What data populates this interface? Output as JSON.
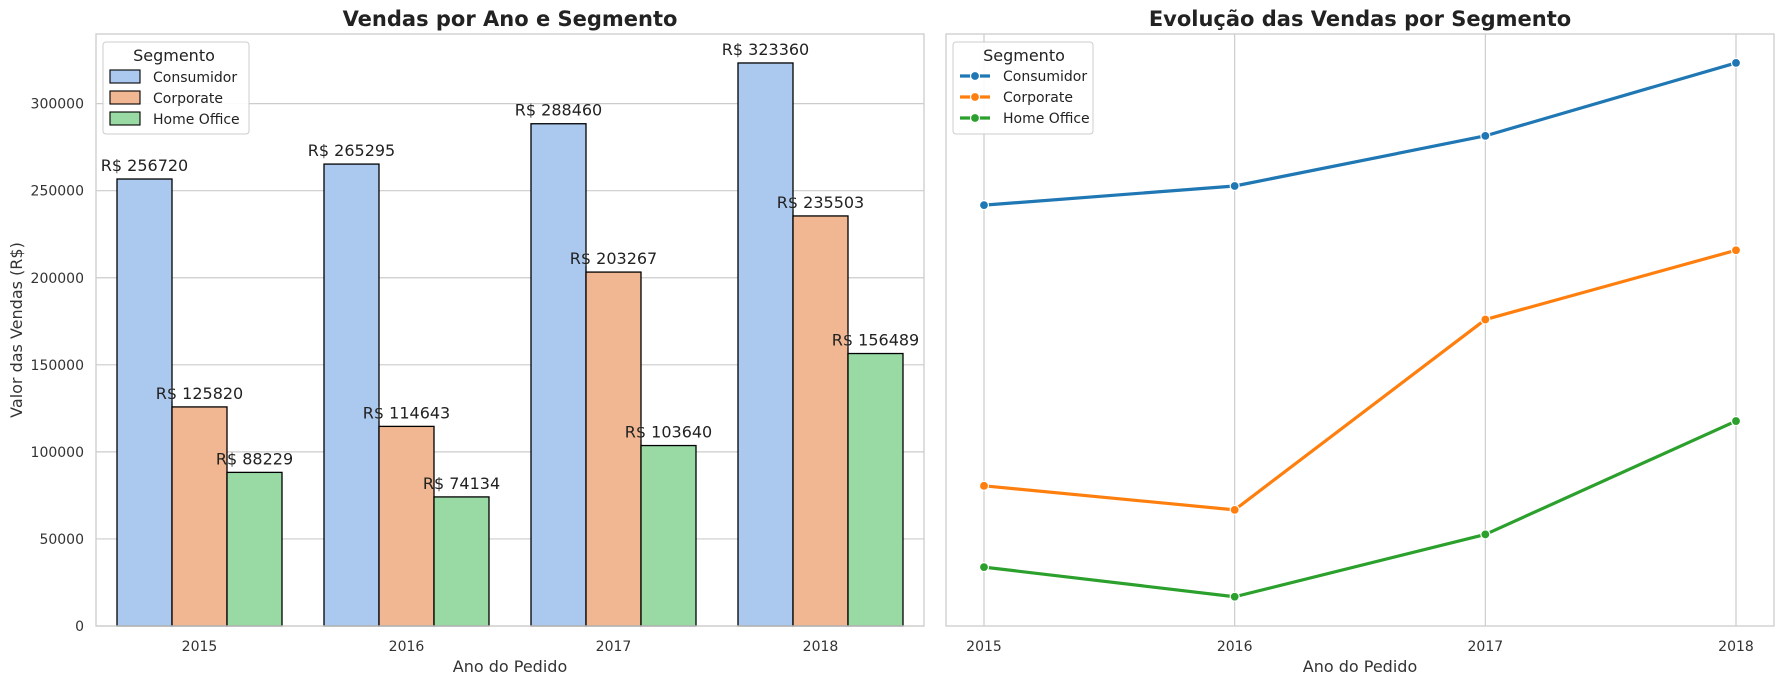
{
  "chart_data": [
    {
      "type": "bar",
      "title": "Vendas por Ano e Segmento",
      "xlabel": "Ano do Pedido",
      "ylabel": "Valor das Vendas (R$)",
      "categories": [
        "2015",
        "2016",
        "2017",
        "2018"
      ],
      "ylim": [
        0,
        340000
      ],
      "yticks": [
        0,
        50000,
        100000,
        150000,
        200000,
        250000,
        300000
      ],
      "ytick_labels": [
        "0",
        "50000",
        "100000",
        "150000",
        "200000",
        "250000",
        "300000"
      ],
      "grid": "horizontal",
      "legend": {
        "title": "Segmento",
        "position": "top-left"
      },
      "series": [
        {
          "name": "Consumidor",
          "color": "#abc9ee",
          "values": [
            256720,
            265295,
            288460,
            323360
          ],
          "labels": [
            "R$ 256720",
            "R$ 265295",
            "R$ 288460",
            "R$ 323360"
          ]
        },
        {
          "name": "Corporate",
          "color": "#f0b792",
          "values": [
            125820,
            114643,
            203267,
            235503
          ],
          "labels": [
            "R$ 125820",
            "R$ 114643",
            "R$ 203267",
            "R$ 235503"
          ]
        },
        {
          "name": "Home Office",
          "color": "#98d9a4",
          "values": [
            88229,
            74134,
            103640,
            156489
          ],
          "labels": [
            "R$ 88229",
            "R$ 74134",
            "R$ 103640",
            "R$ 156489"
          ]
        }
      ]
    },
    {
      "type": "line",
      "title": "Evolução das Vendas por Segmento",
      "xlabel": "Ano do Pedido",
      "categories": [
        "2015",
        "2016",
        "2017",
        "2018"
      ],
      "ylim": [
        0,
        340000
      ],
      "grid": "vertical",
      "legend": {
        "title": "Segmento",
        "position": "top-left"
      },
      "series": [
        {
          "name": "Consumidor",
          "color": "#1f77b4",
          "values": [
            241700,
            252700,
            281500,
            323400
          ]
        },
        {
          "name": "Corporate",
          "color": "#ff7f0e",
          "values": [
            80500,
            66700,
            176000,
            215800
          ]
        },
        {
          "name": "Home Office",
          "color": "#2ca02c",
          "values": [
            33800,
            16800,
            52600,
            117700
          ]
        }
      ]
    }
  ]
}
